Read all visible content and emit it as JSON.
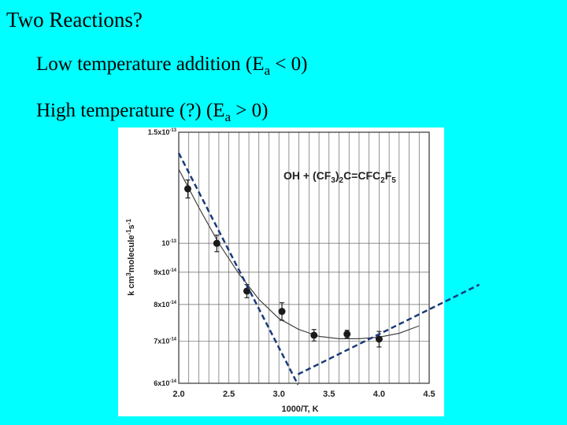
{
  "slide": {
    "title": "Two Reactions?",
    "bullet1": {
      "text": "Low temperature addition (E",
      "sub": "a",
      "tail": " < 0)"
    },
    "bullet2": {
      "text": "High temperature (?) (E",
      "sub": "a",
      "tail": " > 0)"
    }
  },
  "chart_data": {
    "type": "scatter",
    "title": "OH + (CF3)2C=CFC2F5",
    "xlabel": "1000/T,  K",
    "ylabel": "k  cm3molecule-1s-1",
    "xlim": [
      2.0,
      4.5
    ],
    "ylim": [
      6e-14,
      1.5e-13
    ],
    "y_scale": "log",
    "grid": true,
    "x_ticks": [
      "2.0",
      "2.5",
      "3.0",
      "3.5",
      "4.0",
      "4.5"
    ],
    "y_ticks": [
      {
        "value": 1.5e-13,
        "label": "1.5x10-13"
      },
      {
        "value": 1e-13,
        "label": "10-13"
      },
      {
        "value": 9e-14,
        "label": "9x10-14"
      },
      {
        "value": 8e-14,
        "label": "8x10-14"
      },
      {
        "value": 7e-14,
        "label": "7x10-14"
      },
      {
        "value": 6e-14,
        "label": "6x10-14"
      }
    ],
    "points": [
      {
        "x": 2.09,
        "y": 1.22e-13,
        "err": 4e-15
      },
      {
        "x": 2.38,
        "y": 1e-13,
        "err": 3e-15
      },
      {
        "x": 2.68,
        "y": 8.4e-14,
        "err": 2e-15
      },
      {
        "x": 3.03,
        "y": 7.8e-14,
        "err": 2.5e-15
      },
      {
        "x": 3.35,
        "y": 7.15e-14,
        "err": 1.5e-15
      },
      {
        "x": 3.68,
        "y": 7.18e-14,
        "err": 1e-15
      },
      {
        "x": 4.0,
        "y": 7.05e-14,
        "err": 2e-15
      }
    ],
    "fit_curve": [
      [
        2.0,
        1.31e-13
      ],
      [
        2.2,
        1.14e-13
      ],
      [
        2.4,
        1e-13
      ],
      [
        2.6,
        8.95e-14
      ],
      [
        2.8,
        8.15e-14
      ],
      [
        3.0,
        7.6e-14
      ],
      [
        3.2,
        7.3e-14
      ],
      [
        3.4,
        7.12e-14
      ],
      [
        3.6,
        7.06e-14
      ],
      [
        3.8,
        7.06e-14
      ],
      [
        4.0,
        7.1e-14
      ],
      [
        4.2,
        7.2e-14
      ],
      [
        4.4,
        7.4e-14
      ]
    ],
    "asymptotes": [
      {
        "name": "low-temperature",
        "from": [
          2.0,
          1.39e-13
        ],
        "to": [
          3.19,
          5.97e-14
        ]
      },
      {
        "name": "high-temperature",
        "from": [
          3.19,
          6.2e-14
        ],
        "to": [
          5.0,
          8.6e-14
        ]
      }
    ]
  }
}
